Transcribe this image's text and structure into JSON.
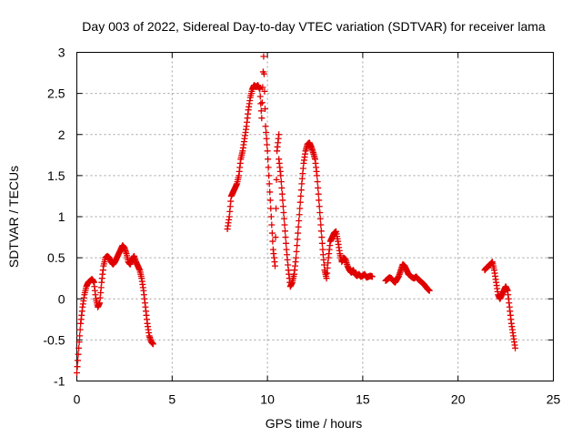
{
  "chart_data": {
    "type": "scatter",
    "title": "Day 003 of 2022, Sidereal Day-to-day VTEC variation (SDTVAR) for receiver lama",
    "xlabel": "GPS time / hours",
    "ylabel": "SDTVAR / TECUs",
    "xlim": [
      0,
      25
    ],
    "ylim": [
      -1,
      3
    ],
    "xticks": [
      0,
      5,
      10,
      15,
      20,
      25
    ],
    "yticks": [
      -1,
      -0.5,
      0,
      0.5,
      1,
      1.5,
      2,
      2.5,
      3
    ],
    "xtick_labels": [
      "0",
      "5",
      "10",
      "15",
      "20",
      "25"
    ],
    "ytick_labels": [
      "-1",
      "-0.5",
      "0",
      "0.5",
      "1",
      "1.5",
      "2",
      "2.5",
      "3"
    ],
    "grid": true,
    "marker": "+",
    "color": "#e00000",
    "series": [
      {
        "name": "SDTVAR",
        "segments": [
          {
            "x": [
              0.0,
              0.1,
              0.2,
              0.3,
              0.4,
              0.5,
              0.6,
              0.7,
              0.8,
              0.9,
              1.0,
              1.1,
              1.2,
              1.3,
              1.4,
              1.5,
              1.6,
              1.7,
              1.8,
              1.9,
              2.0,
              2.1,
              2.2,
              2.3,
              2.4,
              2.5,
              2.6,
              2.7,
              2.8,
              2.9,
              3.0,
              3.1,
              3.2,
              3.3,
              3.4,
              3.5,
              3.6,
              3.7,
              3.8,
              3.9,
              4.0
            ],
            "y": [
              -0.9,
              -0.6,
              -0.3,
              -0.1,
              0.05,
              0.15,
              0.2,
              0.22,
              0.24,
              0.2,
              0.0,
              -0.1,
              -0.05,
              0.2,
              0.4,
              0.5,
              0.52,
              0.5,
              0.45,
              0.42,
              0.45,
              0.5,
              0.55,
              0.6,
              0.65,
              0.62,
              0.55,
              0.45,
              0.42,
              0.48,
              0.52,
              0.45,
              0.4,
              0.35,
              0.25,
              0.1,
              -0.1,
              -0.3,
              -0.45,
              -0.52,
              -0.55
            ]
          },
          {
            "x": [
              7.9,
              8.0,
              8.1,
              8.2,
              8.3,
              8.4,
              8.5,
              8.6,
              8.7,
              8.8,
              8.9,
              9.0,
              9.1,
              9.2,
              9.3,
              9.4,
              9.5,
              9.6,
              9.7,
              9.8,
              9.9,
              10.0,
              10.1,
              10.2,
              10.3,
              10.4,
              10.5,
              10.6
            ],
            "y": [
              0.85,
              1.0,
              1.25,
              1.3,
              1.35,
              1.4,
              1.5,
              1.7,
              1.8,
              1.95,
              2.1,
              2.3,
              2.45,
              2.55,
              2.6,
              2.58,
              2.6,
              2.55,
              2.2,
              2.95,
              2.1,
              1.8,
              1.4,
              1.0,
              0.6,
              0.4,
              1.8,
              2.0
            ]
          },
          {
            "x": [
              10.6,
              10.7,
              10.8,
              10.9,
              11.0,
              11.1,
              11.2,
              11.3,
              11.4,
              11.5,
              11.6,
              11.7,
              11.8,
              11.9,
              12.0,
              12.1,
              12.2,
              12.3,
              12.4,
              12.5,
              12.6,
              12.7,
              12.8,
              12.9,
              13.0,
              13.1,
              13.2,
              13.3,
              13.4,
              13.5,
              13.6,
              13.7,
              13.8,
              13.9,
              14.0,
              14.1,
              14.2,
              14.3,
              14.4,
              14.5,
              14.6,
              14.7,
              14.8,
              14.9,
              15.0,
              15.1,
              15.2,
              15.3,
              15.4,
              15.5
            ],
            "y": [
              1.7,
              1.5,
              1.2,
              0.9,
              0.6,
              0.35,
              0.15,
              0.2,
              0.3,
              0.5,
              0.8,
              1.1,
              1.4,
              1.65,
              1.8,
              1.88,
              1.9,
              1.85,
              1.78,
              1.7,
              1.5,
              1.2,
              0.9,
              0.6,
              0.35,
              0.25,
              0.5,
              0.7,
              0.75,
              0.8,
              0.82,
              0.7,
              0.55,
              0.45,
              0.5,
              0.48,
              0.4,
              0.35,
              0.32,
              0.35,
              0.3,
              0.28,
              0.3,
              0.27,
              0.28,
              0.3,
              0.26,
              0.27,
              0.28,
              0.27
            ]
          },
          {
            "x": [
              16.2,
              16.3,
              16.4,
              16.5,
              16.6,
              16.7,
              16.8,
              16.9,
              17.0,
              17.1,
              17.2,
              17.3,
              17.4,
              17.5,
              17.6,
              17.7,
              17.8,
              17.9,
              18.0,
              18.1,
              18.2,
              18.3,
              18.4,
              18.5
            ],
            "y": [
              0.22,
              0.24,
              0.26,
              0.25,
              0.22,
              0.2,
              0.24,
              0.28,
              0.35,
              0.42,
              0.4,
              0.35,
              0.3,
              0.28,
              0.26,
              0.25,
              0.27,
              0.24,
              0.22,
              0.2,
              0.18,
              0.15,
              0.12,
              0.1
            ]
          },
          {
            "x": [
              21.4,
              21.5,
              21.6,
              21.7,
              21.8,
              21.9,
              22.0,
              22.1,
              22.2,
              22.3,
              22.4,
              22.5,
              22.6,
              22.7,
              22.8,
              22.9,
              23.0
            ],
            "y": [
              0.35,
              0.38,
              0.4,
              0.42,
              0.45,
              0.35,
              0.2,
              0.05,
              0.0,
              0.05,
              0.1,
              0.15,
              0.1,
              -0.1,
              -0.3,
              -0.45,
              -0.6
            ]
          }
        ]
      }
    ]
  }
}
